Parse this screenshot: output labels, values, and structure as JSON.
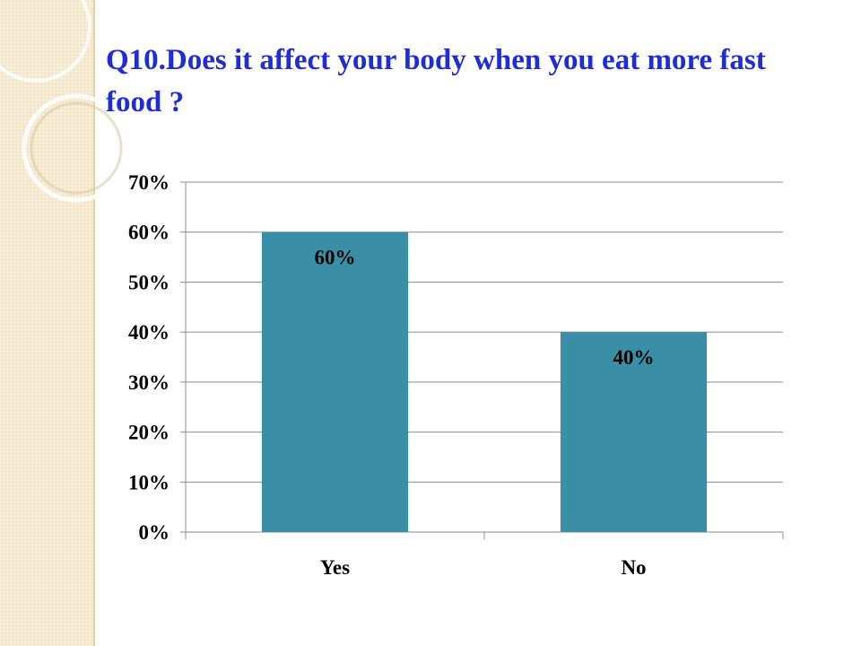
{
  "slide": {
    "title": "Q10.Does it affect your body when you eat more fast food ?"
  },
  "colors": {
    "title": "#1f2dd6",
    "bar": "#3a8fa6",
    "gridline": "#8c8c8c",
    "side_band": "#f4e6c4"
  },
  "chart_data": {
    "type": "bar",
    "categories": [
      "Yes",
      "No"
    ],
    "values": [
      60,
      40
    ],
    "data_labels": [
      "60%",
      "40%"
    ],
    "title": "",
    "xlabel": "",
    "ylabel": "",
    "ylim": [
      0,
      70
    ],
    "y_ticks": [
      0,
      10,
      20,
      30,
      40,
      50,
      60,
      70
    ],
    "y_tick_labels": [
      "0%",
      "10%",
      "20%",
      "30%",
      "40%",
      "50%",
      "60%",
      "70%"
    ],
    "grid": true,
    "legend": "none"
  }
}
